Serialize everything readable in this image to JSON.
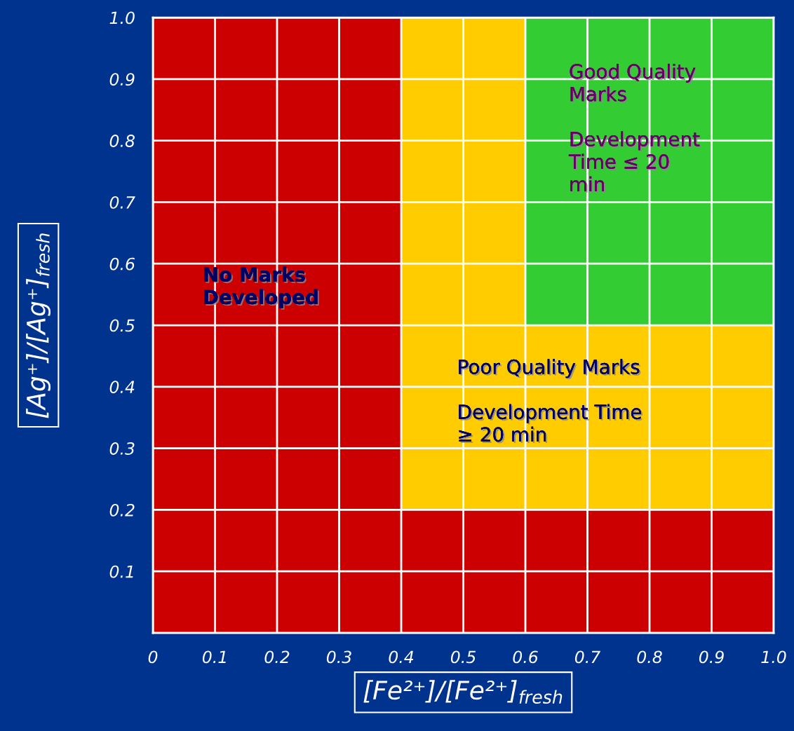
{
  "chart_data": {
    "type": "area",
    "stacked": true,
    "x": [
      0,
      0.4,
      0.4,
      0.6,
      0.6,
      1.0
    ],
    "series": [
      {
        "color": "#cc0000",
        "values": [
          1.0,
          1.0,
          0.2,
          0.2,
          0.2,
          0.2
        ]
      },
      {
        "color": "#ffcc00",
        "values": [
          0,
          0,
          0.8,
          0.8,
          0.3,
          0.3
        ]
      },
      {
        "color": "#33cc33",
        "values": [
          0,
          0,
          0,
          0,
          0.5,
          0.5
        ]
      }
    ],
    "xlim": [
      0,
      1
    ],
    "ylim": [
      0,
      1
    ],
    "xticks": [
      0,
      0.1,
      0.2,
      0.3,
      0.4,
      0.5,
      0.6,
      0.7,
      0.8,
      0.9,
      {
        "value": 1,
        "label": "1.0"
      }
    ],
    "yticks": [
      {
        "value": 0,
        "label": null
      },
      0.1,
      0.2,
      0.3,
      0.4,
      0.5,
      0.6,
      0.7,
      0.8,
      0.9,
      {
        "value": 1,
        "label": "1.0"
      }
    ],
    "grid": true,
    "xlabel": "[Fe²⁺]/[Fe²⁺]$_{fresh}$",
    "ylabel": "[Ag⁺]/[Ag⁺]$_{fresh}$",
    "annotations": [
      "No Marks\nDeveloped",
      "Good Quality\nMarks\n\nDevelopment\nTime ≤ 20\nmin",
      "Poor Quality Marks\n\nDevelopment Time\n≥ 20 min"
    ]
  }
}
